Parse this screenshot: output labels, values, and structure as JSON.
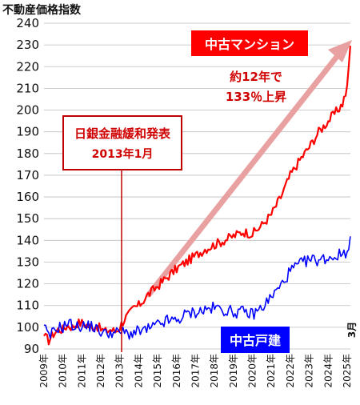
{
  "chart_data": {
    "type": "line",
    "title": "",
    "ylabel": "不動産価格指数",
    "xlabel": "",
    "ylim": [
      90,
      240
    ],
    "yticks": [
      90,
      100,
      110,
      120,
      130,
      140,
      150,
      160,
      170,
      180,
      190,
      200,
      210,
      220,
      230,
      240
    ],
    "x_categories": [
      "2009年",
      "2010年",
      "2011年",
      "2012年",
      "2013年",
      "2014年",
      "2015年",
      "2016年",
      "2017年",
      "2018年",
      "2019年",
      "2020年",
      "2021年",
      "2022年",
      "2023年",
      "2024年",
      "2025年"
    ],
    "grid": true,
    "end_marker": "3月",
    "series": [
      {
        "name": "中古マンション",
        "color": "#ff0000",
        "x": [
          2009.0,
          2009.25,
          2009.5,
          2009.75,
          2010.0,
          2010.25,
          2010.5,
          2010.75,
          2011.0,
          2011.25,
          2011.5,
          2011.75,
          2012.0,
          2012.25,
          2012.5,
          2012.75,
          2013.0,
          2013.25,
          2013.5,
          2013.75,
          2014.0,
          2014.5,
          2015.0,
          2015.5,
          2016.0,
          2016.5,
          2017.0,
          2017.5,
          2018.0,
          2018.5,
          2019.0,
          2019.5,
          2020.0,
          2020.5,
          2021.0,
          2021.5,
          2022.0,
          2022.5,
          2023.0,
          2023.5,
          2024.0,
          2024.5,
          2024.75,
          2025.0,
          2025.17
        ],
        "values": [
          96,
          94,
          97,
          99,
          99,
          101,
          100,
          102,
          102,
          101,
          100,
          101,
          99,
          98,
          99,
          98,
          100,
          104,
          106,
          109,
          110,
          115,
          119,
          123,
          127,
          130,
          133,
          136,
          138,
          140,
          142,
          144,
          143,
          147,
          152,
          160,
          170,
          177,
          183,
          190,
          195,
          200,
          203,
          210,
          230
        ]
      },
      {
        "name": "中古戸建",
        "color": "#0000ff",
        "x": [
          2009.0,
          2009.25,
          2009.5,
          2009.75,
          2010.0,
          2010.25,
          2010.5,
          2010.75,
          2011.0,
          2011.25,
          2011.5,
          2011.75,
          2012.0,
          2012.25,
          2012.5,
          2012.75,
          2013.0,
          2013.5,
          2014.0,
          2014.5,
          2015.0,
          2015.5,
          2016.0,
          2016.5,
          2017.0,
          2017.5,
          2018.0,
          2018.5,
          2019.0,
          2019.5,
          2020.0,
          2020.5,
          2021.0,
          2021.5,
          2022.0,
          2022.5,
          2023.0,
          2023.5,
          2024.0,
          2024.5,
          2025.0,
          2025.17
        ],
        "values": [
          101,
          95,
          98,
          100,
          100,
          102,
          101,
          100,
          101,
          100,
          101,
          99,
          98,
          97,
          98,
          97,
          98,
          97,
          98,
          99,
          101,
          103,
          103,
          106,
          107,
          108,
          109,
          108,
          107,
          107,
          106,
          109,
          114,
          119,
          126,
          129,
          131,
          131,
          132,
          133,
          135,
          142
        ]
      }
    ]
  },
  "annotations": {
    "mansion_label": "中古マンション",
    "mansion_growth_line1": "約12年で",
    "mansion_growth_line2": "133％上昇",
    "event_line1": "日銀金融緩和発表",
    "event_line2": "2013年1月",
    "house_label": "中古戸建"
  },
  "colors": {
    "mansion": "#ff0000",
    "house": "#0000ff",
    "trend_arrow": "#e8a0a0",
    "event_line": "#c00000"
  }
}
